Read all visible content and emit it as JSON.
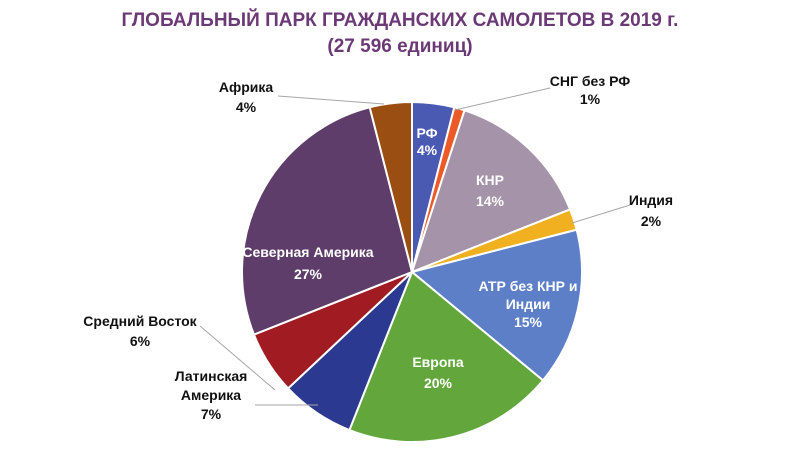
{
  "title_line1": "ГЛОБАЛЬНЫЙ ПАРК ГРАЖДАНСКИХ САМОЛЕТОВ В 2019 г.",
  "title_line2": "(27 596 единиц)",
  "chart_data": {
    "type": "pie",
    "title": "ГЛОБАЛЬНЫЙ ПАРК ГРАЖДАНСКИХ САМОЛЕТОВ В 2019 г.",
    "subtitle": "(27 596 единиц)",
    "slices": [
      {
        "label": [
          "РФ"
        ],
        "value": 4,
        "value_label": "4%",
        "color": "#4a5ab3",
        "label_inside": true
      },
      {
        "label": [
          "СНГ без РФ"
        ],
        "value": 1,
        "value_label": "1%",
        "color": "#ec5a28",
        "label_inside": false
      },
      {
        "label": [
          "КНР"
        ],
        "value": 14,
        "value_label": "14%",
        "color": "#a594a9",
        "label_inside": true
      },
      {
        "label": [
          "Индия"
        ],
        "value": 2,
        "value_label": "2%",
        "color": "#f0b020",
        "label_inside": false
      },
      {
        "label": [
          "АТР без КНР и",
          "Индии"
        ],
        "value": 15,
        "value_label": "15%",
        "color": "#5d7fc8",
        "label_inside": true
      },
      {
        "label": [
          "Европа"
        ],
        "value": 20,
        "value_label": "20%",
        "color": "#62a63c",
        "label_inside": true
      },
      {
        "label": [
          "Латинская",
          "Америка"
        ],
        "value": 7,
        "value_label": "7%",
        "color": "#2c3990",
        "label_inside": false
      },
      {
        "label": [
          "Средний Восток"
        ],
        "value": 6,
        "value_label": "6%",
        "color": "#a01c22",
        "label_inside": false
      },
      {
        "label": [
          "Северная Америка"
        ],
        "value": 27,
        "value_label": "27%",
        "color": "#5e3d6a",
        "label_inside": true
      },
      {
        "label": [
          "Африка"
        ],
        "value": 4,
        "value_label": "4%",
        "color": "#9a4e12",
        "label_inside": false
      }
    ]
  }
}
